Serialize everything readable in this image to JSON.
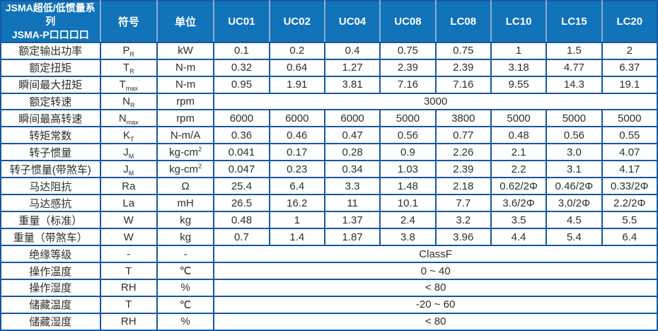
{
  "colors": {
    "header_bg": "#1173b9",
    "border": "#1459a2",
    "header_separator": "#8fa9d6",
    "text": "#2e2e2e",
    "header_text": "#ffffff"
  },
  "table": {
    "header": {
      "title_line1": "JSMA超低/低惯量系列",
      "title_line2": "JSMA-P口口口口",
      "symbol_col": "符号",
      "unit_col": "单位",
      "models": [
        "UC01",
        "UC02",
        "UC04",
        "UC08",
        "LC08",
        "LC10",
        "LC15",
        "LC20"
      ]
    },
    "rows": [
      {
        "label": "额定输出功率",
        "symbol": "P",
        "sub": "R",
        "unit": "kW",
        "values": [
          "0.1",
          "0.2",
          "0.4",
          "0.75",
          "0.75",
          "1",
          "1.5",
          "2"
        ]
      },
      {
        "label": "额定扭矩",
        "symbol": "T",
        "sub": "R",
        "unit": "N-m",
        "values": [
          "0.32",
          "0.64",
          "1.27",
          "2.39",
          "2.39",
          "3.18",
          "4.77",
          "6.37"
        ]
      },
      {
        "label": "瞬间最大扭矩",
        "symbol": "T",
        "sub": "max",
        "unit": "N-m",
        "values": [
          "0.95",
          "1.91",
          "3.81",
          "7.16",
          "7.16",
          "9.55",
          "14.3",
          "19.1"
        ]
      },
      {
        "label": "额定转速",
        "symbol": "N",
        "sub": "R",
        "unit": "rpm",
        "merged": "3000"
      },
      {
        "label": "瞬间最高转速",
        "symbol": "N",
        "sub": "max",
        "unit": "rpm",
        "values": [
          "6000",
          "6000",
          "6000",
          "5000",
          "3800",
          "5000",
          "5000",
          "5000"
        ]
      },
      {
        "label": "转矩常数",
        "symbol": "K",
        "sub": "T",
        "unit": "N-m/A",
        "values": [
          "0.36",
          "0.46",
          "0.47",
          "0.56",
          "0.77",
          "0.48",
          "0.56",
          "0.55"
        ]
      },
      {
        "label": "转子惯量",
        "symbol": "J",
        "sub": "M",
        "unit": "kg-cm",
        "unit_sup": "2",
        "values": [
          "0.041",
          "0.17",
          "0.28",
          "0.9",
          "2.26",
          "2.1",
          "3.0",
          "4.07"
        ]
      },
      {
        "label": "转子惯量(带煞车)",
        "symbol": "J",
        "sub": "M",
        "unit": "kg-cm",
        "unit_sup": "2",
        "values": [
          "0.047",
          "0.23",
          "0.34",
          "1.03",
          "2.39",
          "2.2",
          "3.1",
          "4.17"
        ]
      },
      {
        "label": "马达阻抗",
        "symbol": "Ra",
        "unit": "Ω",
        "values": [
          "25.4",
          "6.4",
          "3.3",
          "1.48",
          "2.18",
          "0.62/2Φ",
          "0.46/2Φ",
          "0.33/2Φ"
        ]
      },
      {
        "label": "马达感抗",
        "symbol": "La",
        "unit": "mH",
        "values": [
          "26.5",
          "16.2",
          "11",
          "10.1",
          "7.7",
          "3.6/2Φ",
          "3.0/2Φ",
          "2.2/2Φ"
        ]
      },
      {
        "label": "重量（标准）",
        "symbol": "W",
        "unit": "kg",
        "values": [
          "0.48",
          "1",
          "1.37",
          "2.4",
          "3.2",
          "3.5",
          "4.5",
          "5.5"
        ]
      },
      {
        "label": "重量（带煞车）",
        "symbol": "W",
        "unit": "kg",
        "values": [
          "0.7",
          "1.4",
          "1.87",
          "3.8",
          "3.96",
          "4.4",
          "5.4",
          "6.4"
        ]
      },
      {
        "label": "绝缘等级",
        "symbol": "-",
        "unit": "-",
        "merged": "ClassF"
      },
      {
        "label": "操作温度",
        "symbol": "T",
        "unit": "℃",
        "merged": "0 ~ 40"
      },
      {
        "label": "操作湿度",
        "symbol": "RH",
        "unit": "%",
        "merged": "< 80"
      },
      {
        "label": "储藏温度",
        "symbol": "T",
        "unit": "℃",
        "merged": "-20 ~ 60"
      },
      {
        "label": "储藏湿度",
        "symbol": "RH",
        "unit": "%",
        "merged": "< 80"
      }
    ]
  }
}
